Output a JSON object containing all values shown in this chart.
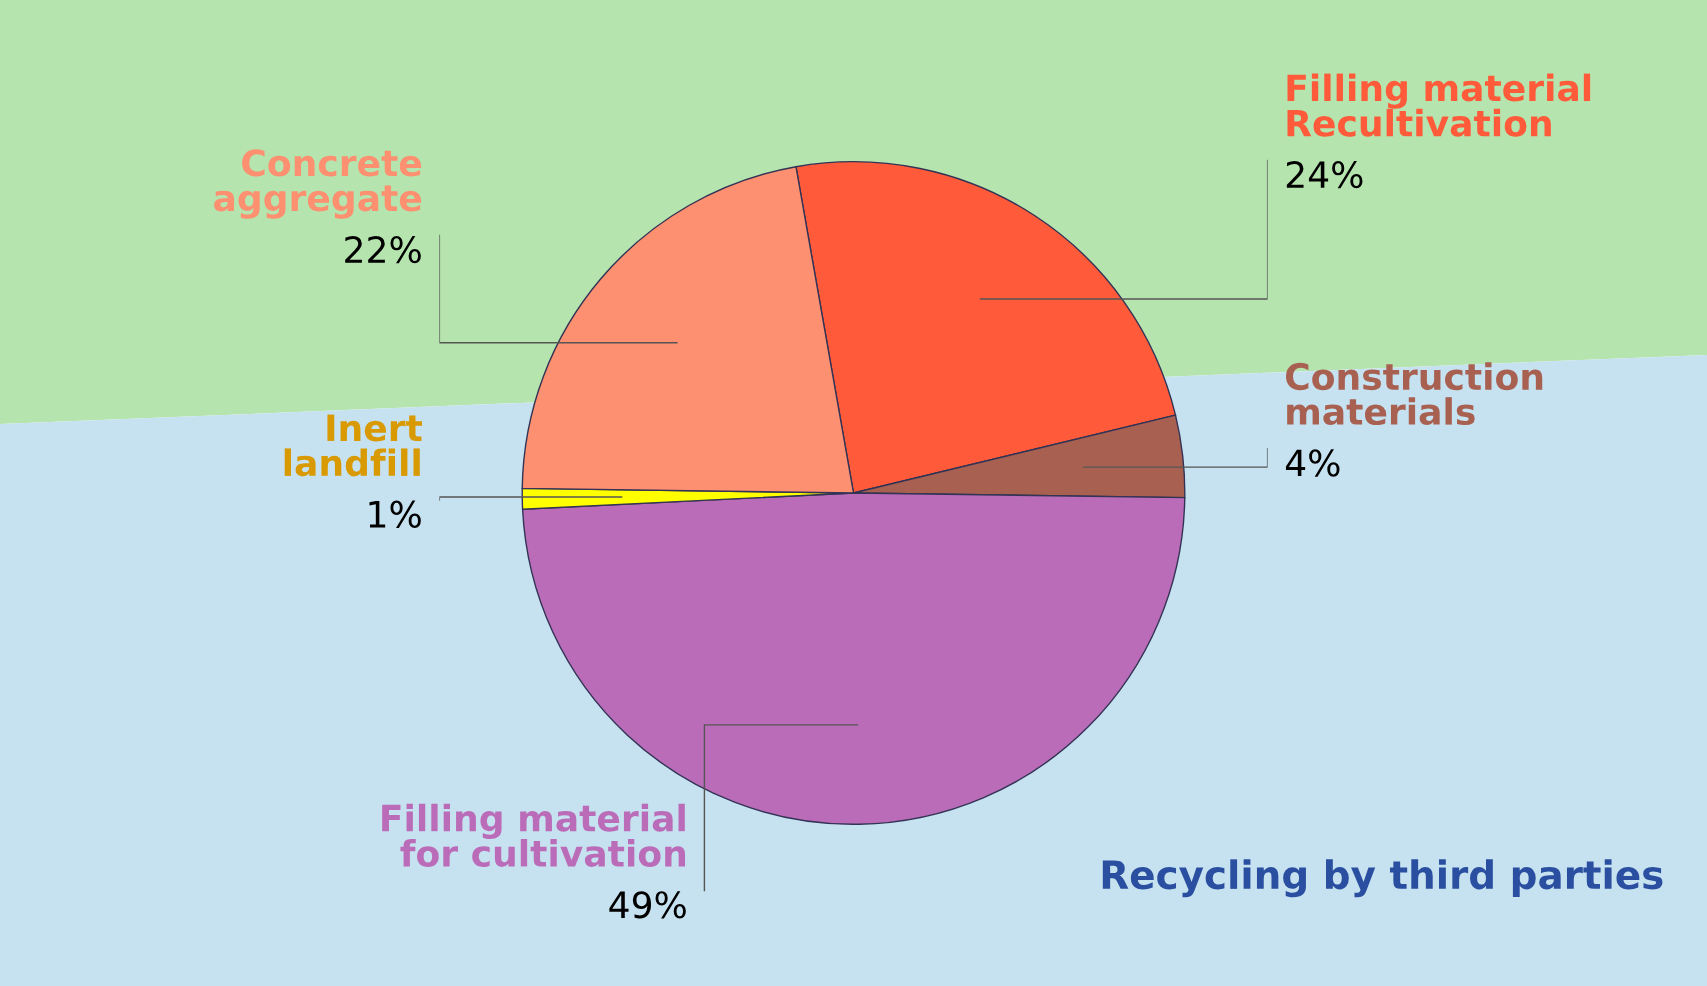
{
  "chart_data": {
    "type": "pie",
    "categories": [
      "Filling material\nRecultivation",
      "Construction\nmaterials",
      "Filling material\nfor cultivation",
      "Inert\nlandfill",
      "Concrete\naggregate"
    ],
    "values": [
      24,
      4,
      49,
      1,
      22
    ],
    "colors": [
      "#ff5a3a",
      "#a86050",
      "#bb6cb8",
      "#ffff00",
      "#fc9070"
    ],
    "value_labels": [
      "24%",
      "4%",
      "49%",
      "1%",
      "22%"
    ],
    "annotations": [
      "Recycling by third parties"
    ],
    "legend": false
  }
}
